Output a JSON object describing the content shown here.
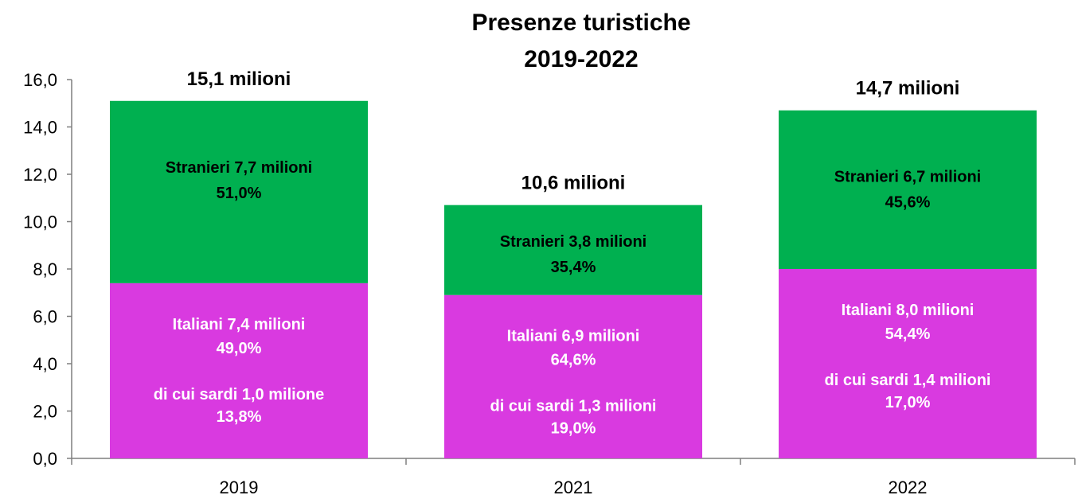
{
  "chart_data": {
    "type": "bar",
    "stacked": true,
    "title": [
      "Presenze turistiche",
      "2019-2022"
    ],
    "categories": [
      "2019",
      "2021",
      "2022"
    ],
    "ylim": [
      0,
      16
    ],
    "yticks": [
      "0,0",
      "2,0",
      "4,0",
      "6,0",
      "8,0",
      "10,0",
      "12,0",
      "14,0",
      "16,0"
    ],
    "ytick_values": [
      0,
      2,
      4,
      6,
      8,
      10,
      12,
      14,
      16
    ],
    "grid": false,
    "series": [
      {
        "name": "Italiani",
        "color": "#d93ae0",
        "values": [
          7.4,
          6.9,
          8.0
        ]
      },
      {
        "name": "Stranieri",
        "color": "#00b050",
        "values": [
          7.7,
          3.8,
          6.7
        ]
      }
    ],
    "totals": [
      "15,1 milioni",
      "10,6 milioni",
      "14,7 milioni"
    ],
    "segment_labels": {
      "stranieri": [
        [
          "Stranieri 7,7 milioni",
          "51,0%"
        ],
        [
          "Stranieri 3,8 milioni",
          "35,4%"
        ],
        [
          "Stranieri 6,7 milioni",
          "45,6%"
        ]
      ],
      "italiani": [
        [
          "Italiani 7,4 milioni",
          "49,0%"
        ],
        [
          "Italiani 6,9 milioni",
          "64,6%"
        ],
        [
          "Italiani 8,0 milioni",
          "54,4%"
        ]
      ],
      "sardi": [
        [
          "di cui sardi 1,0 milione",
          "13,8%"
        ],
        [
          "di cui sardi 1,3 milioni",
          "19,0%"
        ],
        [
          "di cui sardi 1,4 milioni",
          "17,0%"
        ]
      ]
    }
  }
}
